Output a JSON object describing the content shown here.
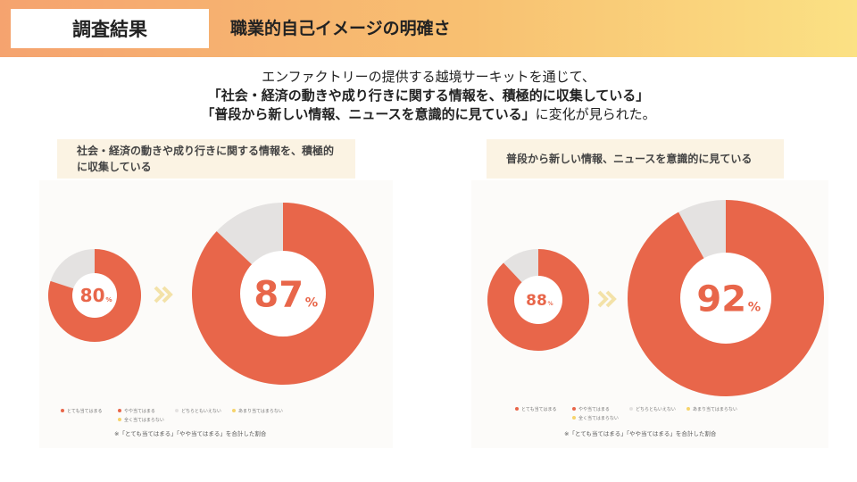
{
  "header": {
    "tag": "調査結果",
    "title": "職業的自己イメージの明確さ"
  },
  "intro": {
    "line1": "エンファクトリーの提供する越境サーキットを通じて、",
    "line2": "「社会・経済の動きや成り行きに関する情報を、積極的に収集している」",
    "line3_bold": "「普段から新しい情報、ニュースを意識的に見ている」",
    "line3_rest": "に変化が見られた。"
  },
  "colors": {
    "primary": "#e8664a",
    "secondary": "#e4e2e1",
    "arrow": "#f3e2a8"
  },
  "legend": [
    "とても当てはまる",
    "やや当てはまる",
    "どちらともいえない",
    "あまり当てはまらない",
    "全く当てはまらない"
  ],
  "note": "※「とても当てはまる」「やや当てはまる」を合計した割合",
  "unit": "%",
  "chart_data": [
    {
      "type": "pie",
      "title": "社会・経済の動きや成り行きに関する情報を、積極的に収集している",
      "series": [
        {
          "name": "before",
          "value": 80
        },
        {
          "name": "after",
          "value": 87
        }
      ]
    },
    {
      "type": "pie",
      "title": "普段から新しい情報、ニュースを意識的に見ている",
      "series": [
        {
          "name": "before",
          "value": 88
        },
        {
          "name": "after",
          "value": 92
        }
      ]
    }
  ]
}
